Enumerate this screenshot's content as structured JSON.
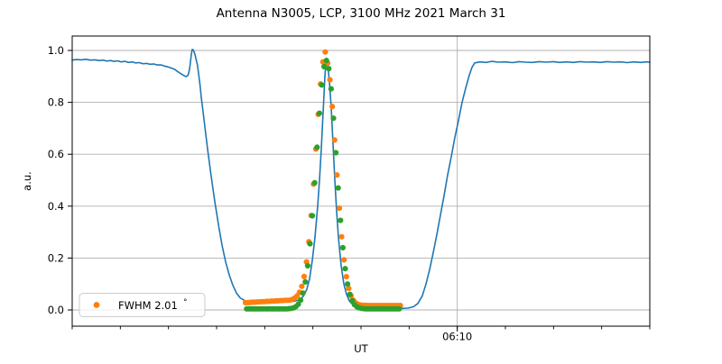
{
  "chart_data": {
    "type": "line",
    "title": "Antenna N3005, LCP, 3100 MHz 2021 March 31",
    "xlabel": "UT",
    "ylabel": "a.u.",
    "legend": {
      "label": "FWHM 2.01",
      "degree_symbol": "°",
      "marker_color": "#ff7f0e",
      "position": "lower left"
    },
    "colors": {
      "scan_line": "#1f77b4",
      "fit_data_dots": "#ff7f0e",
      "gaussian_fit_dots": "#2ca02c",
      "grid": "#b0b0b0",
      "spine": "#000000",
      "background": "#ffffff"
    },
    "x_axis": {
      "unit": "minutes after 06:00 UT",
      "lim": [
        2.0,
        14.0
      ],
      "major_ticks": [
        {
          "x": 10.0,
          "label": "06:10"
        }
      ],
      "minor_tick_start": 2.0,
      "minor_tick_step": 1.0,
      "minor_tick_end": 14.0,
      "grid_on_major": true
    },
    "y_axis": {
      "lim": [
        -0.0625,
        1.0556
      ],
      "ticks": [
        0.0,
        0.2,
        0.4,
        0.6,
        0.8,
        1.0
      ],
      "tick_labels": [
        "0.0",
        "0.2",
        "0.4",
        "0.6",
        "0.8",
        "1.0"
      ],
      "grid_on_major": true
    },
    "series": [
      {
        "name": "antenna_scan",
        "kind": "line",
        "color": "#1f77b4",
        "width": 1.6,
        "points": [
          [
            2.0,
            0.963
          ],
          [
            2.09,
            0.965
          ],
          [
            2.188,
            0.964
          ],
          [
            2.28,
            0.966
          ],
          [
            2.375,
            0.963
          ],
          [
            2.47,
            0.964
          ],
          [
            2.563,
            0.961
          ],
          [
            2.65,
            0.963
          ],
          [
            2.713,
            0.959
          ],
          [
            2.8,
            0.961
          ],
          [
            2.863,
            0.958
          ],
          [
            2.95,
            0.96
          ],
          [
            3.013,
            0.956
          ],
          [
            3.1,
            0.958
          ],
          [
            3.163,
            0.954
          ],
          [
            3.25,
            0.956
          ],
          [
            3.313,
            0.952
          ],
          [
            3.4,
            0.953
          ],
          [
            3.463,
            0.949
          ],
          [
            3.55,
            0.95
          ],
          [
            3.613,
            0.947
          ],
          [
            3.7,
            0.948
          ],
          [
            3.763,
            0.944
          ],
          [
            3.85,
            0.944
          ],
          [
            3.913,
            0.94
          ],
          [
            3.99,
            0.937
          ],
          [
            4.063,
            0.932
          ],
          [
            4.12,
            0.928
          ],
          [
            4.175,
            0.921
          ],
          [
            4.23,
            0.914
          ],
          [
            4.288,
            0.907
          ],
          [
            4.33,
            0.902
          ],
          [
            4.363,
            0.899
          ],
          [
            4.4,
            0.903
          ],
          [
            4.419,
            0.912
          ],
          [
            4.44,
            0.93
          ],
          [
            4.456,
            0.955
          ],
          [
            4.475,
            0.985
          ],
          [
            4.494,
            1.004
          ],
          [
            4.515,
            1.002
          ],
          [
            4.531,
            0.995
          ],
          [
            4.55,
            0.985
          ],
          [
            4.569,
            0.97
          ],
          [
            4.6,
            0.945
          ],
          [
            4.625,
            0.912
          ],
          [
            4.655,
            0.868
          ],
          [
            4.681,
            0.82
          ],
          [
            4.71,
            0.778
          ],
          [
            4.738,
            0.735
          ],
          [
            4.813,
            0.62
          ],
          [
            4.888,
            0.515
          ],
          [
            4.963,
            0.418
          ],
          [
            5.038,
            0.33
          ],
          [
            5.113,
            0.25
          ],
          [
            5.188,
            0.185
          ],
          [
            5.263,
            0.135
          ],
          [
            5.338,
            0.095
          ],
          [
            5.413,
            0.065
          ],
          [
            5.488,
            0.047
          ],
          [
            5.581,
            0.036
          ],
          [
            5.675,
            0.03
          ],
          [
            5.844,
            0.029
          ],
          [
            6.031,
            0.029
          ],
          [
            6.219,
            0.03
          ],
          [
            6.406,
            0.031
          ],
          [
            6.594,
            0.033
          ],
          [
            6.706,
            0.038
          ],
          [
            6.8,
            0.052
          ],
          [
            6.875,
            0.08
          ],
          [
            6.931,
            0.12
          ],
          [
            6.988,
            0.19
          ],
          [
            7.044,
            0.28
          ],
          [
            7.1,
            0.4
          ],
          [
            7.138,
            0.5
          ],
          [
            7.175,
            0.62
          ],
          [
            7.213,
            0.76
          ],
          [
            7.25,
            0.9
          ],
          [
            7.269,
            0.95
          ],
          [
            7.288,
            0.97
          ],
          [
            7.306,
            0.95
          ],
          [
            7.344,
            0.88
          ],
          [
            7.381,
            0.78
          ],
          [
            7.419,
            0.64
          ],
          [
            7.456,
            0.5
          ],
          [
            7.494,
            0.38
          ],
          [
            7.531,
            0.28
          ],
          [
            7.588,
            0.17
          ],
          [
            7.644,
            0.1
          ],
          [
            7.7,
            0.06
          ],
          [
            7.756,
            0.035
          ],
          [
            7.831,
            0.02
          ],
          [
            7.925,
            0.012
          ],
          [
            8.094,
            0.008
          ],
          [
            8.281,
            0.006
          ],
          [
            8.469,
            0.006
          ],
          [
            8.656,
            0.006
          ],
          [
            8.844,
            0.006
          ],
          [
            8.975,
            0.007
          ],
          [
            9.088,
            0.012
          ],
          [
            9.181,
            0.025
          ],
          [
            9.275,
            0.055
          ],
          [
            9.35,
            0.1
          ],
          [
            9.425,
            0.155
          ],
          [
            9.5,
            0.22
          ],
          [
            9.575,
            0.29
          ],
          [
            9.65,
            0.365
          ],
          [
            9.725,
            0.44
          ],
          [
            9.8,
            0.52
          ],
          [
            9.875,
            0.59
          ],
          [
            9.95,
            0.665
          ],
          [
            10.025,
            0.73
          ],
          [
            10.1,
            0.8
          ],
          [
            10.175,
            0.855
          ],
          [
            10.25,
            0.905
          ],
          [
            10.306,
            0.935
          ],
          [
            10.363,
            0.952
          ],
          [
            10.475,
            0.956
          ],
          [
            10.6,
            0.954
          ],
          [
            10.719,
            0.958
          ],
          [
            10.85,
            0.955
          ],
          [
            11.0,
            0.956
          ],
          [
            11.15,
            0.953
          ],
          [
            11.281,
            0.957
          ],
          [
            11.42,
            0.955
          ],
          [
            11.563,
            0.954
          ],
          [
            11.7,
            0.957
          ],
          [
            11.844,
            0.955
          ],
          [
            12.0,
            0.957
          ],
          [
            12.125,
            0.954
          ],
          [
            12.27,
            0.956
          ],
          [
            12.406,
            0.954
          ],
          [
            12.55,
            0.957
          ],
          [
            12.688,
            0.955
          ],
          [
            12.83,
            0.956
          ],
          [
            12.969,
            0.954
          ],
          [
            13.11,
            0.957
          ],
          [
            13.25,
            0.955
          ],
          [
            13.39,
            0.956
          ],
          [
            13.531,
            0.953
          ],
          [
            13.67,
            0.956
          ],
          [
            13.813,
            0.954
          ],
          [
            13.92,
            0.956
          ],
          [
            14.0,
            0.955
          ]
        ]
      },
      {
        "name": "fit_window_data",
        "kind": "scatter",
        "color": "#ff7f0e",
        "radius": 3.1,
        "points": [
          [
            5.6,
            0.028
          ],
          [
            5.649,
            0.028
          ],
          [
            5.698,
            0.029
          ],
          [
            5.746,
            0.03
          ],
          [
            5.795,
            0.03
          ],
          [
            5.844,
            0.031
          ],
          [
            5.893,
            0.031
          ],
          [
            5.941,
            0.032
          ],
          [
            5.99,
            0.032
          ],
          [
            6.039,
            0.033
          ],
          [
            6.088,
            0.033
          ],
          [
            6.136,
            0.034
          ],
          [
            6.185,
            0.034
          ],
          [
            6.234,
            0.035
          ],
          [
            6.283,
            0.035
          ],
          [
            6.331,
            0.036
          ],
          [
            6.38,
            0.036
          ],
          [
            6.429,
            0.037
          ],
          [
            6.478,
            0.037
          ],
          [
            6.526,
            0.038
          ],
          [
            6.575,
            0.041
          ],
          [
            6.624,
            0.046
          ],
          [
            6.673,
            0.054
          ],
          [
            6.721,
            0.068
          ],
          [
            6.77,
            0.091
          ],
          [
            6.819,
            0.129
          ],
          [
            6.868,
            0.185
          ],
          [
            6.916,
            0.263
          ],
          [
            6.965,
            0.364
          ],
          [
            7.014,
            0.485
          ],
          [
            7.063,
            0.62
          ],
          [
            7.111,
            0.754
          ],
          [
            7.16,
            0.871
          ],
          [
            7.209,
            0.956
          ],
          [
            7.258,
            0.994
          ],
          [
            7.306,
            0.951
          ],
          [
            7.355,
            0.887
          ],
          [
            7.404,
            0.784
          ],
          [
            7.453,
            0.655
          ],
          [
            7.501,
            0.52
          ],
          [
            7.55,
            0.392
          ],
          [
            7.599,
            0.282
          ],
          [
            7.648,
            0.193
          ],
          [
            7.696,
            0.128
          ],
          [
            7.745,
            0.083
          ],
          [
            7.794,
            0.054
          ],
          [
            7.843,
            0.037
          ],
          [
            7.891,
            0.027
          ],
          [
            7.94,
            0.022
          ],
          [
            7.989,
            0.019
          ],
          [
            8.038,
            0.018
          ],
          [
            8.086,
            0.018
          ],
          [
            8.135,
            0.017
          ],
          [
            8.184,
            0.017
          ],
          [
            8.233,
            0.017
          ],
          [
            8.281,
            0.017
          ],
          [
            8.33,
            0.017
          ],
          [
            8.379,
            0.017
          ],
          [
            8.428,
            0.017
          ],
          [
            8.476,
            0.017
          ],
          [
            8.525,
            0.017
          ],
          [
            8.574,
            0.017
          ],
          [
            8.623,
            0.017
          ],
          [
            8.671,
            0.017
          ],
          [
            8.72,
            0.017
          ],
          [
            8.769,
            0.017
          ],
          [
            8.818,
            0.017
          ]
        ]
      },
      {
        "name": "gaussian_fit",
        "kind": "scatter",
        "color": "#2ca02c",
        "radius": 3.1,
        "points": [
          [
            5.624,
            0.004
          ],
          [
            5.673,
            0.004
          ],
          [
            5.722,
            0.004
          ],
          [
            5.771,
            0.004
          ],
          [
            5.819,
            0.004
          ],
          [
            5.868,
            0.004
          ],
          [
            5.917,
            0.004
          ],
          [
            5.966,
            0.004
          ],
          [
            6.014,
            0.004
          ],
          [
            6.063,
            0.004
          ],
          [
            6.112,
            0.004
          ],
          [
            6.161,
            0.004
          ],
          [
            6.209,
            0.004
          ],
          [
            6.258,
            0.004
          ],
          [
            6.307,
            0.004
          ],
          [
            6.356,
            0.004
          ],
          [
            6.404,
            0.004
          ],
          [
            6.453,
            0.004
          ],
          [
            6.502,
            0.005
          ],
          [
            6.551,
            0.006
          ],
          [
            6.599,
            0.008
          ],
          [
            6.648,
            0.013
          ],
          [
            6.697,
            0.022
          ],
          [
            6.746,
            0.038
          ],
          [
            6.794,
            0.065
          ],
          [
            6.843,
            0.108
          ],
          [
            6.892,
            0.17
          ],
          [
            6.941,
            0.255
          ],
          [
            6.989,
            0.363
          ],
          [
            7.038,
            0.49
          ],
          [
            7.087,
            0.627
          ],
          [
            7.136,
            0.758
          ],
          [
            7.184,
            0.867
          ],
          [
            7.233,
            0.938
          ],
          [
            7.282,
            0.961
          ],
          [
            7.331,
            0.93
          ],
          [
            7.379,
            0.852
          ],
          [
            7.428,
            0.739
          ],
          [
            7.477,
            0.606
          ],
          [
            7.526,
            0.47
          ],
          [
            7.574,
            0.345
          ],
          [
            7.623,
            0.24
          ],
          [
            7.672,
            0.159
          ],
          [
            7.721,
            0.1
          ],
          [
            7.769,
            0.06
          ],
          [
            7.818,
            0.035
          ],
          [
            7.867,
            0.02
          ],
          [
            7.916,
            0.012
          ],
          [
            7.964,
            0.008
          ],
          [
            8.013,
            0.006
          ],
          [
            8.062,
            0.005
          ],
          [
            8.111,
            0.004
          ],
          [
            8.159,
            0.004
          ],
          [
            8.208,
            0.004
          ],
          [
            8.257,
            0.004
          ],
          [
            8.306,
            0.004
          ],
          [
            8.354,
            0.004
          ],
          [
            8.403,
            0.004
          ],
          [
            8.452,
            0.004
          ],
          [
            8.501,
            0.004
          ],
          [
            8.549,
            0.004
          ],
          [
            8.598,
            0.004
          ],
          [
            8.647,
            0.004
          ],
          [
            8.696,
            0.004
          ],
          [
            8.744,
            0.004
          ],
          [
            8.793,
            0.004
          ]
        ]
      }
    ]
  }
}
